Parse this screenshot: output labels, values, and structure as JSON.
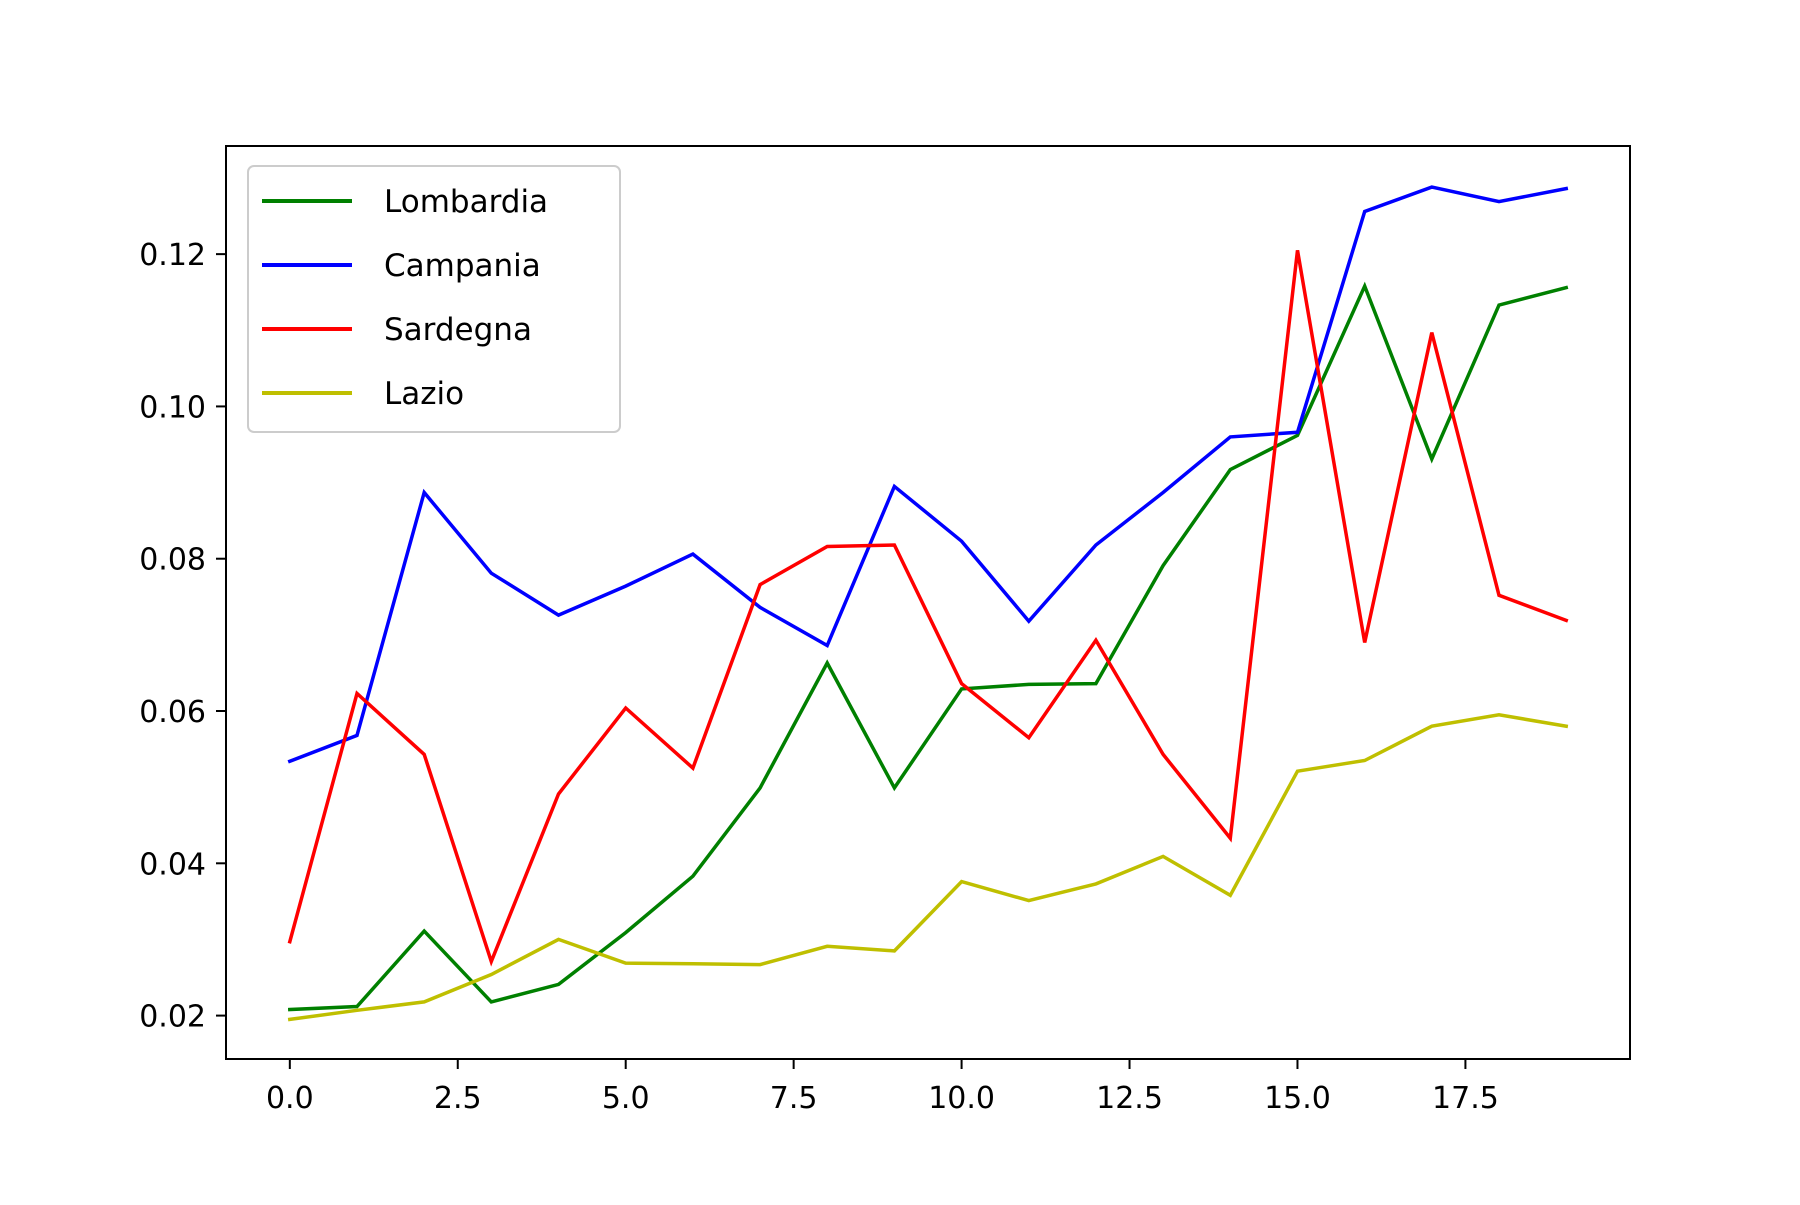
{
  "chart_data": {
    "type": "line",
    "title": "",
    "xlabel": "",
    "ylabel": "",
    "x": [
      0,
      1,
      2,
      3,
      4,
      5,
      6,
      7,
      8,
      9,
      10,
      11,
      12,
      13,
      14,
      15,
      16,
      17,
      18,
      19
    ],
    "xlim": [
      -0.95,
      19.95
    ],
    "ylim": [
      0.0143,
      0.1342
    ],
    "xticks": [
      0.0,
      2.5,
      5.0,
      7.5,
      10.0,
      12.5,
      15.0,
      17.5
    ],
    "xtick_labels": [
      "0.0",
      "2.5",
      "5.0",
      "7.5",
      "10.0",
      "12.5",
      "15.0",
      "17.5"
    ],
    "yticks": [
      0.02,
      0.04,
      0.06,
      0.08,
      0.1,
      0.12
    ],
    "ytick_labels": [
      "0.02",
      "0.04",
      "0.06",
      "0.08",
      "0.10",
      "0.12"
    ],
    "grid": false,
    "legend_position": "top-left",
    "series": [
      {
        "name": "Lombardia",
        "color": "#008000",
        "values": [
          0.0208,
          0.0212,
          0.0311,
          0.0218,
          0.0241,
          0.0309,
          0.0383,
          0.0499,
          0.0663,
          0.0499,
          0.0629,
          0.0635,
          0.0636,
          0.0791,
          0.0917,
          0.0962,
          0.1158,
          0.0931,
          0.1133,
          0.1156
        ]
      },
      {
        "name": "Campania",
        "color": "#0000ff",
        "values": [
          0.0534,
          0.0568,
          0.0887,
          0.0781,
          0.0726,
          0.0764,
          0.0806,
          0.0736,
          0.0686,
          0.0895,
          0.0823,
          0.0718,
          0.0818,
          0.0887,
          0.096,
          0.0966,
          0.1256,
          0.1288,
          0.1269,
          0.1286
        ]
      },
      {
        "name": "Sardegna",
        "color": "#ff0000",
        "values": [
          0.0297,
          0.0623,
          0.0543,
          0.0271,
          0.0491,
          0.0604,
          0.0525,
          0.0766,
          0.0816,
          0.0818,
          0.0636,
          0.0565,
          0.0693,
          0.0543,
          0.0433,
          0.1205,
          0.069,
          0.1097,
          0.0752,
          0.0719
        ]
      },
      {
        "name": "Lazio",
        "color": "#bfbf00",
        "values": [
          0.0195,
          0.0207,
          0.0218,
          0.0254,
          0.03,
          0.0269,
          0.0268,
          0.0267,
          0.0291,
          0.0285,
          0.0376,
          0.0351,
          0.0373,
          0.0409,
          0.0358,
          0.0521,
          0.0535,
          0.058,
          0.0595,
          0.058
        ]
      }
    ]
  }
}
